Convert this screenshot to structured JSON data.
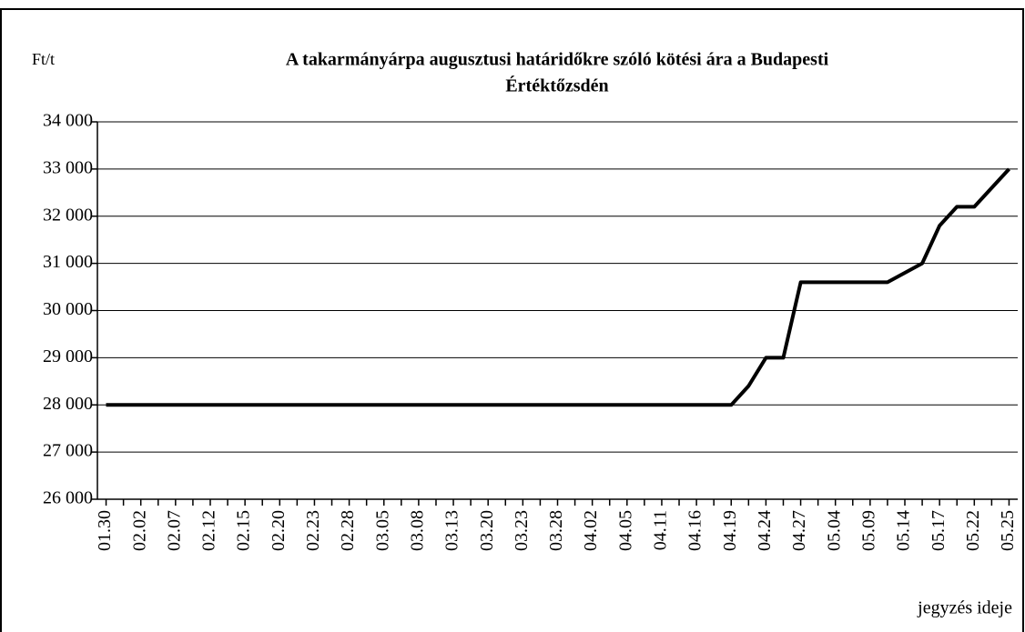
{
  "chart_data": {
    "type": "line",
    "title": [
      "A takarmányárpa augusztusi határidőkre szóló kötési ára a Budapesti",
      "Értéktőzsdén"
    ],
    "y_label": "Ft/t",
    "x_label": "jegyzés ideje",
    "categories": [
      "01.30",
      null,
      "02.02",
      null,
      "02.07",
      null,
      "02.12",
      null,
      "02.15",
      null,
      "02.20",
      null,
      "02.23",
      null,
      "02.28",
      null,
      "03.05",
      null,
      "03.08",
      null,
      "03.13",
      null,
      "03.20",
      null,
      "03.23",
      null,
      "03.28",
      null,
      "04.02",
      null,
      "04.05",
      null,
      "04.11",
      null,
      "04.16",
      null,
      "04.19",
      null,
      "04.24",
      null,
      "04.27",
      null,
      "05.04",
      null,
      "05.09",
      null,
      "05.14",
      null,
      "05.17",
      null,
      "05.22",
      null,
      "05.25"
    ],
    "values": [
      28000,
      28000,
      28000,
      28000,
      28000,
      28000,
      28000,
      28000,
      28000,
      28000,
      28000,
      28000,
      28000,
      28000,
      28000,
      28000,
      28000,
      28000,
      28000,
      28000,
      28000,
      28000,
      28000,
      28000,
      28000,
      28000,
      28000,
      28000,
      28000,
      28000,
      28000,
      28000,
      28000,
      28000,
      28000,
      28000,
      28000,
      28400,
      29000,
      29000,
      30600,
      30600,
      30600,
      30600,
      30600,
      30600,
      30800,
      31000,
      31800,
      32200,
      32200,
      32600,
      33000
    ],
    "color": "#000000",
    "ylim": [
      26000,
      34000
    ],
    "yticks": [
      {
        "value": 26000,
        "label": "26 000"
      },
      {
        "value": 27000,
        "label": "27 000"
      },
      {
        "value": 28000,
        "label": "28 000"
      },
      {
        "value": 29000,
        "label": "29 000"
      },
      {
        "value": 30000,
        "label": "30 000"
      },
      {
        "value": 31000,
        "label": "31 000"
      },
      {
        "value": 32000,
        "label": "32 000"
      },
      {
        "value": 33000,
        "label": "33 000"
      },
      {
        "value": 34000,
        "label": "34 000"
      }
    ],
    "grid": true
  }
}
